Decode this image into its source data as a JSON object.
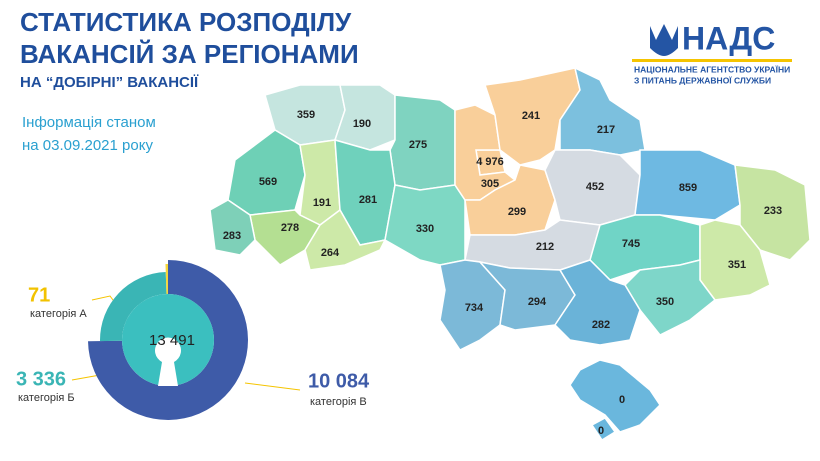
{
  "header": {
    "title_line1": "СТАТИСТИКА РОЗПОДІЛУ",
    "title_line2": "ВАКАНСІЙ ЗА РЕГІОНАМИ",
    "subtitle": "НА “ДОБІРНІ” ВАКАНСІЇ",
    "info_line1": "Інформація станом",
    "info_line2": "на 03.09.2021 року"
  },
  "logo": {
    "name": "НАДС",
    "line1": "НАЦІОНАЛЬНЕ АГЕНТСТВО УКРАЇНИ",
    "line2": "З ПИТАНЬ ДЕРЖАВНОЇ СЛУЖБИ"
  },
  "map": {
    "values": [
      359,
      190,
      275,
      569,
      191,
      281,
      278,
      283,
      264,
      330,
      4976,
      305,
      299,
      241,
      217,
      452,
      859,
      233,
      212,
      745,
      351,
      734,
      294,
      350,
      282,
      0,
      0
    ],
    "value_labels": [
      "359",
      "190",
      "275",
      "569",
      "191",
      "281",
      "278",
      "283",
      "264",
      "330",
      "4 976",
      "305",
      "299",
      "241",
      "217",
      "452",
      "859",
      "233",
      "212",
      "745",
      "351",
      "734",
      "294",
      "350",
      "282",
      "0",
      "0"
    ]
  },
  "chart_data": {
    "type": "donut",
    "total": 13491,
    "total_label": "13 491",
    "categories": [
      "категорія А",
      "категорія Б",
      "категорія В"
    ],
    "values": [
      71,
      3336,
      10084
    ],
    "value_labels": [
      "71",
      "3 336",
      "10 084"
    ],
    "colors": [
      "#f5d63a",
      "#3ab5b5",
      "#3e5ba8"
    ]
  }
}
